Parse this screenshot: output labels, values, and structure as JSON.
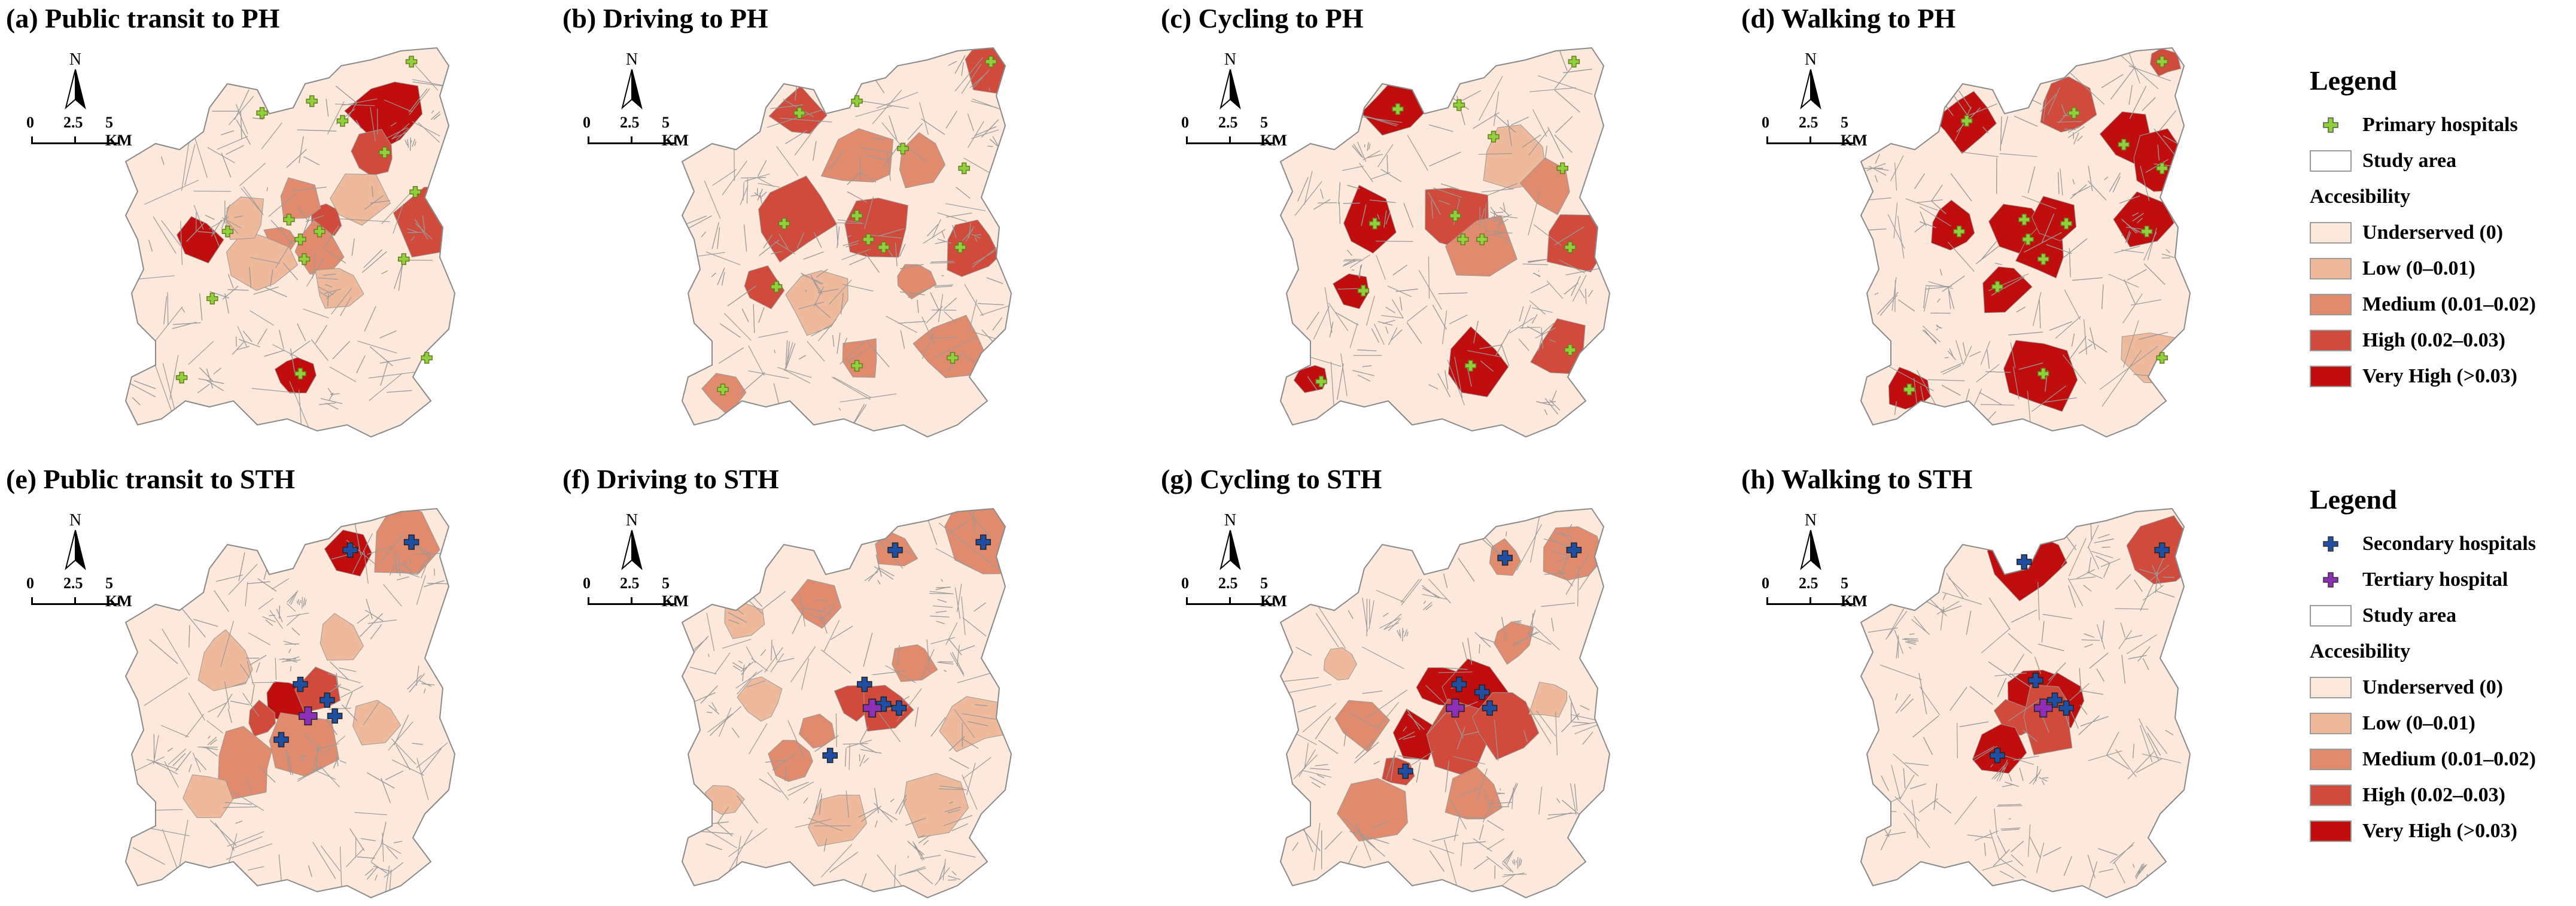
{
  "colors": {
    "underserved": "#fde9db",
    "low": "#efb99b",
    "medium": "#e08b6d",
    "high": "#d04b3b",
    "very_high": "#c00d0d",
    "boundary": "#9a9a9a",
    "primary_hospital": "#8fd13b",
    "secondary_hospital": "#1f4fa3",
    "tertiary_hospital": "#8e2fb8"
  },
  "scale_labels": {
    "zero": "0",
    "mid": "2.5",
    "end": "5 KM"
  },
  "north_label": "N",
  "panels": [
    {
      "id": "a",
      "title": "(a) Public transit to PH",
      "facility": "primary",
      "hot": [
        [
          0.78,
          0.18,
          "vh"
        ],
        [
          0.28,
          0.5,
          "vh"
        ],
        [
          0.62,
          0.45,
          "h"
        ],
        [
          0.54,
          0.84,
          "vh"
        ],
        [
          0.9,
          0.45,
          "h"
        ],
        [
          0.75,
          0.28,
          "h"
        ],
        [
          0.5,
          0.5,
          "m"
        ],
        [
          0.6,
          0.52,
          "m"
        ],
        [
          0.55,
          0.4,
          "m"
        ],
        [
          0.45,
          0.55,
          "l"
        ],
        [
          0.65,
          0.62,
          "l"
        ],
        [
          0.7,
          0.4,
          "l"
        ],
        [
          0.4,
          0.45,
          "l"
        ]
      ],
      "sites": [
        [
          0.84,
          0.05
        ],
        [
          0.45,
          0.18
        ],
        [
          0.58,
          0.15
        ],
        [
          0.66,
          0.2
        ],
        [
          0.77,
          0.28
        ],
        [
          0.85,
          0.38
        ],
        [
          0.36,
          0.48
        ],
        [
          0.52,
          0.45
        ],
        [
          0.55,
          0.5
        ],
        [
          0.6,
          0.48
        ],
        [
          0.56,
          0.55
        ],
        [
          0.82,
          0.55
        ],
        [
          0.32,
          0.65
        ],
        [
          0.24,
          0.85
        ],
        [
          0.88,
          0.8
        ],
        [
          0.55,
          0.84
        ]
      ]
    },
    {
      "id": "b",
      "title": "(b) Driving to PH",
      "facility": "primary",
      "hot": [
        [
          0.9,
          0.05,
          "h"
        ],
        [
          0.4,
          0.18,
          "h"
        ],
        [
          0.72,
          0.3,
          "m"
        ],
        [
          0.38,
          0.45,
          "h"
        ],
        [
          0.6,
          0.47,
          "h"
        ],
        [
          0.85,
          0.52,
          "h"
        ],
        [
          0.3,
          0.62,
          "h"
        ],
        [
          0.8,
          0.78,
          "m"
        ],
        [
          0.56,
          0.8,
          "m"
        ],
        [
          0.2,
          0.88,
          "m"
        ],
        [
          0.55,
          0.3,
          "m"
        ],
        [
          0.45,
          0.65,
          "l"
        ],
        [
          0.7,
          0.6,
          "m"
        ]
      ],
      "sites": [
        [
          0.9,
          0.05
        ],
        [
          0.4,
          0.18
        ],
        [
          0.55,
          0.15
        ],
        [
          0.67,
          0.27
        ],
        [
          0.83,
          0.32
        ],
        [
          0.36,
          0.46
        ],
        [
          0.55,
          0.44
        ],
        [
          0.58,
          0.5
        ],
        [
          0.62,
          0.52
        ],
        [
          0.82,
          0.52
        ],
        [
          0.34,
          0.62
        ],
        [
          0.55,
          0.82
        ],
        [
          0.8,
          0.8
        ],
        [
          0.2,
          0.88
        ]
      ]
    },
    {
      "id": "c",
      "title": "(c) Cycling to PH",
      "facility": "primary",
      "hot": [
        [
          0.4,
          0.17,
          "vh"
        ],
        [
          0.32,
          0.46,
          "vh"
        ],
        [
          0.55,
          0.45,
          "h"
        ],
        [
          0.62,
          0.52,
          "m"
        ],
        [
          0.86,
          0.5,
          "h"
        ],
        [
          0.28,
          0.63,
          "vh"
        ],
        [
          0.59,
          0.82,
          "vh"
        ],
        [
          0.83,
          0.78,
          "h"
        ],
        [
          0.18,
          0.85,
          "vh"
        ],
        [
          0.7,
          0.3,
          "l"
        ],
        [
          0.8,
          0.36,
          "m"
        ]
      ],
      "sites": [
        [
          0.86,
          0.05
        ],
        [
          0.4,
          0.17
        ],
        [
          0.56,
          0.16
        ],
        [
          0.65,
          0.24
        ],
        [
          0.83,
          0.32
        ],
        [
          0.34,
          0.46
        ],
        [
          0.55,
          0.44
        ],
        [
          0.57,
          0.5
        ],
        [
          0.62,
          0.5
        ],
        [
          0.85,
          0.52
        ],
        [
          0.31,
          0.63
        ],
        [
          0.59,
          0.82
        ],
        [
          0.85,
          0.78
        ],
        [
          0.2,
          0.86
        ]
      ]
    },
    {
      "id": "d",
      "title": "(d) Walking to PH",
      "facility": "primary",
      "hot": [
        [
          0.63,
          0.16,
          "h"
        ],
        [
          0.37,
          0.2,
          "vh"
        ],
        [
          0.79,
          0.24,
          "vh"
        ],
        [
          0.88,
          0.32,
          "vh"
        ],
        [
          0.84,
          0.45,
          "vh"
        ],
        [
          0.33,
          0.46,
          "vh"
        ],
        [
          0.5,
          0.48,
          "vh"
        ],
        [
          0.57,
          0.53,
          "vh"
        ],
        [
          0.6,
          0.45,
          "vh"
        ],
        [
          0.46,
          0.62,
          "vh"
        ],
        [
          0.57,
          0.84,
          "vh"
        ],
        [
          0.22,
          0.88,
          "vh"
        ],
        [
          0.85,
          0.8,
          "l"
        ],
        [
          0.88,
          0.05,
          "h"
        ]
      ],
      "sites": [
        [
          0.88,
          0.05
        ],
        [
          0.37,
          0.2
        ],
        [
          0.65,
          0.18
        ],
        [
          0.78,
          0.26
        ],
        [
          0.88,
          0.32
        ],
        [
          0.35,
          0.48
        ],
        [
          0.52,
          0.45
        ],
        [
          0.53,
          0.5
        ],
        [
          0.57,
          0.55
        ],
        [
          0.63,
          0.46
        ],
        [
          0.84,
          0.48
        ],
        [
          0.45,
          0.62
        ],
        [
          0.57,
          0.84
        ],
        [
          0.88,
          0.8
        ],
        [
          0.22,
          0.88
        ]
      ]
    },
    {
      "id": "e",
      "title": "(e) Public transit to STH",
      "facility": "secondary",
      "hot": [
        [
          0.68,
          0.12,
          "vh"
        ],
        [
          0.82,
          0.1,
          "m"
        ],
        [
          0.52,
          0.5,
          "vh"
        ],
        [
          0.6,
          0.48,
          "h"
        ],
        [
          0.45,
          0.55,
          "h"
        ],
        [
          0.4,
          0.66,
          "m"
        ],
        [
          0.55,
          0.62,
          "m"
        ],
        [
          0.35,
          0.4,
          "l"
        ],
        [
          0.65,
          0.35,
          "l"
        ],
        [
          0.3,
          0.75,
          "l"
        ],
        [
          0.75,
          0.55,
          "l"
        ]
      ],
      "sites": [
        [
          0.84,
          0.1
        ],
        [
          0.68,
          0.12
        ],
        [
          0.55,
          0.46
        ],
        [
          0.62,
          0.5
        ],
        [
          0.64,
          0.54
        ],
        [
          0.5,
          0.6
        ]
      ],
      "tertiary": [
        [
          0.57,
          0.54
        ]
      ]
    },
    {
      "id": "f",
      "title": "(f) Driving to STH",
      "facility": "secondary",
      "hot": [
        [
          0.65,
          0.12,
          "m"
        ],
        [
          0.88,
          0.1,
          "m"
        ],
        [
          0.55,
          0.5,
          "h"
        ],
        [
          0.62,
          0.52,
          "h"
        ],
        [
          0.45,
          0.58,
          "m"
        ],
        [
          0.38,
          0.65,
          "m"
        ],
        [
          0.7,
          0.4,
          "m"
        ],
        [
          0.3,
          0.5,
          "l"
        ],
        [
          0.2,
          0.75,
          "l"
        ],
        [
          0.75,
          0.75,
          "l"
        ],
        [
          0.5,
          0.8,
          "l"
        ],
        [
          0.85,
          0.55,
          "l"
        ],
        [
          0.25,
          0.3,
          "l"
        ],
        [
          0.45,
          0.25,
          "m"
        ]
      ],
      "sites": [
        [
          0.88,
          0.1
        ],
        [
          0.65,
          0.12
        ],
        [
          0.57,
          0.46
        ],
        [
          0.62,
          0.51
        ],
        [
          0.66,
          0.52
        ],
        [
          0.48,
          0.64
        ]
      ],
      "tertiary": [
        [
          0.59,
          0.52
        ]
      ]
    },
    {
      "id": "g",
      "title": "(g) Cycling to STH",
      "facility": "secondary",
      "hot": [
        [
          0.68,
          0.14,
          "m"
        ],
        [
          0.85,
          0.12,
          "m"
        ],
        [
          0.52,
          0.47,
          "vh"
        ],
        [
          0.6,
          0.48,
          "vh"
        ],
        [
          0.45,
          0.6,
          "vh"
        ],
        [
          0.4,
          0.68,
          "h"
        ],
        [
          0.55,
          0.6,
          "h"
        ],
        [
          0.68,
          0.55,
          "h"
        ],
        [
          0.3,
          0.55,
          "m"
        ],
        [
          0.7,
          0.35,
          "m"
        ],
        [
          0.35,
          0.78,
          "m"
        ],
        [
          0.6,
          0.75,
          "m"
        ],
        [
          0.8,
          0.5,
          "l"
        ],
        [
          0.25,
          0.4,
          "l"
        ]
      ],
      "sites": [
        [
          0.86,
          0.12
        ],
        [
          0.68,
          0.14
        ],
        [
          0.56,
          0.46
        ],
        [
          0.62,
          0.48
        ],
        [
          0.64,
          0.52
        ],
        [
          0.42,
          0.68
        ]
      ],
      "tertiary": [
        [
          0.55,
          0.52
        ]
      ]
    },
    {
      "id": "h",
      "title": "(h) Walking to STH",
      "facility": "secondary",
      "hot": [
        [
          0.52,
          0.15,
          "vh"
        ],
        [
          0.88,
          0.12,
          "h"
        ],
        [
          0.55,
          0.48,
          "vh"
        ],
        [
          0.62,
          0.5,
          "vh"
        ],
        [
          0.5,
          0.55,
          "h"
        ],
        [
          0.45,
          0.62,
          "vh"
        ],
        [
          0.58,
          0.55,
          "h"
        ]
      ],
      "sites": [
        [
          0.88,
          0.12
        ],
        [
          0.52,
          0.15
        ],
        [
          0.55,
          0.45
        ],
        [
          0.6,
          0.5
        ],
        [
          0.63,
          0.52
        ],
        [
          0.45,
          0.64
        ]
      ],
      "tertiary": [
        [
          0.57,
          0.52
        ]
      ]
    }
  ],
  "legend_top": {
    "title": "Legend",
    "items": [
      {
        "symbol": "primary",
        "label": "Primary hospitals"
      },
      {
        "symbol": "area",
        "label": "Study area"
      }
    ],
    "section": "Accesibility",
    "classes": [
      {
        "key": "underserved",
        "label": "Underserved (0)"
      },
      {
        "key": "low",
        "label": "Low (0–0.01)"
      },
      {
        "key": "medium",
        "label": "Medium (0.01–0.02)"
      },
      {
        "key": "high",
        "label": "High (0.02–0.03)"
      },
      {
        "key": "very_high",
        "label": "Very High (>0.03)"
      }
    ]
  },
  "legend_bottom": {
    "title": "Legend",
    "items": [
      {
        "symbol": "secondary",
        "label": "Secondary hospitals"
      },
      {
        "symbol": "tertiary",
        "label": "Tertiary hospital"
      },
      {
        "symbol": "area",
        "label": "Study area"
      }
    ],
    "section": "Accesibility",
    "classes": [
      {
        "key": "underserved",
        "label": "Underserved (0)"
      },
      {
        "key": "low",
        "label": "Low (0–0.01)"
      },
      {
        "key": "medium",
        "label": "Medium (0.01–0.02)"
      },
      {
        "key": "high",
        "label": "High (0.02–0.03)"
      },
      {
        "key": "very_high",
        "label": "Very High (>0.03)"
      }
    ]
  }
}
